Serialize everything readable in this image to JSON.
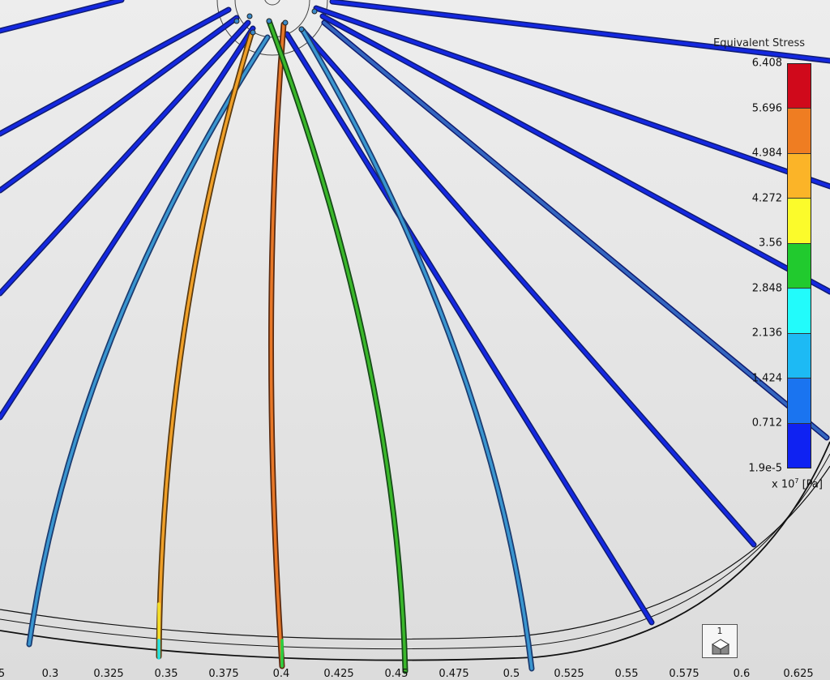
{
  "viewport": {
    "name": "3D model viewport - equivalent stress result",
    "background": "#e8e8e8"
  },
  "legend": {
    "title": "Equivalent Stress",
    "unit_prefix": "x 10",
    "unit_exponent": "7",
    "unit_suffix": " [Pa]",
    "levels": [
      "6.408",
      "5.696",
      "4.984",
      "4.272",
      "3.56",
      "2.848",
      "2.136",
      "1.424",
      "0.712",
      "1.9e-5"
    ],
    "colors": [
      "#d0091b",
      "#ef7d22",
      "#fbb428",
      "#fbfb2b",
      "#21ca2e",
      "#22fbfb",
      "#1dbaf4",
      "#1a74f0",
      "#0f22f2"
    ]
  },
  "x_axis": {
    "labels": [
      "5",
      "0.3",
      "0.325",
      "0.35",
      "0.375",
      "0.4",
      "0.425",
      "0.45",
      "0.475",
      "0.5",
      "0.525",
      "0.55",
      "0.575",
      "0.6",
      "0.625"
    ]
  },
  "view_cube": {
    "label": "1",
    "icon": "triad-icon"
  },
  "spoke_colors": {
    "blue": "#1028d0",
    "light_blue": "#3a8ac8",
    "orange": "#e8902a",
    "deep_orange": "#e07028",
    "green": "#3aaa28"
  }
}
